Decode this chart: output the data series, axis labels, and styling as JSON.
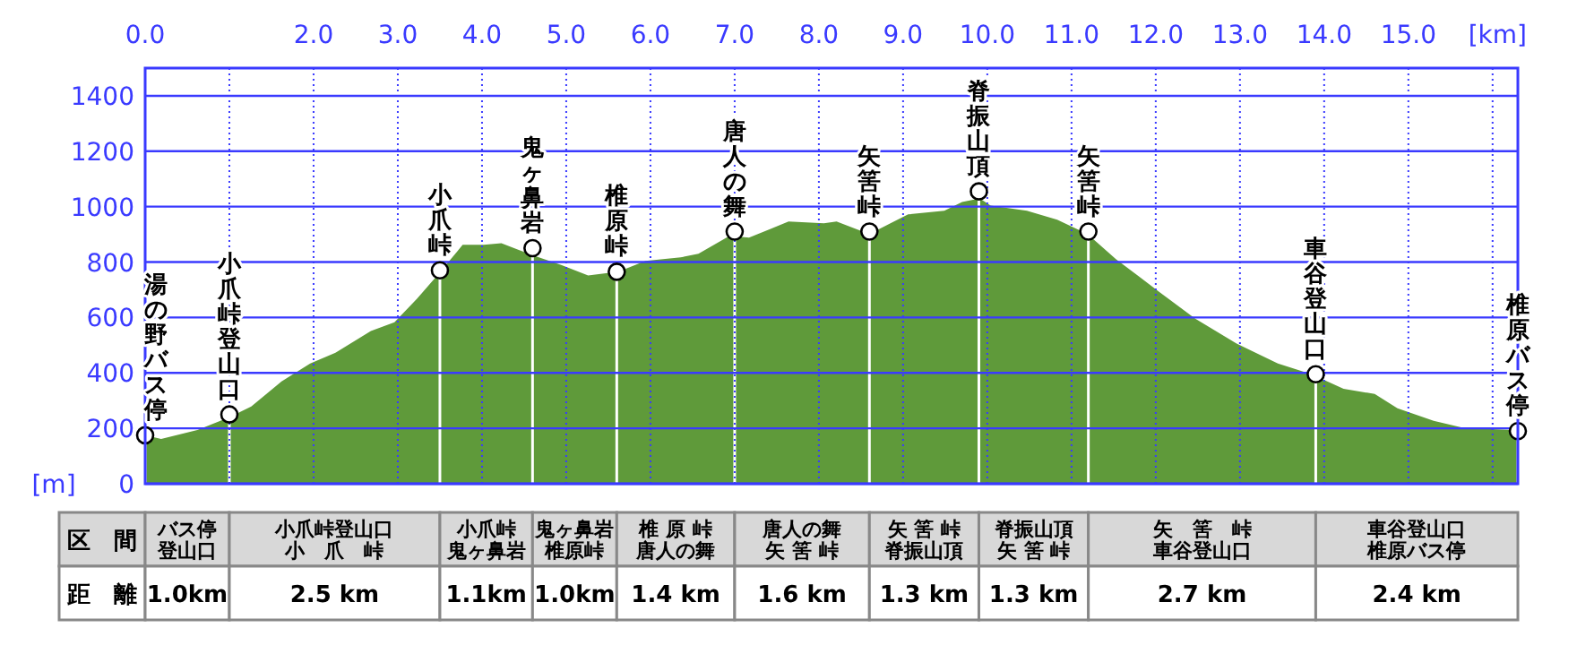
{
  "chart_data": {
    "type": "area",
    "xlabel": "[km]",
    "ylabel": "[m]",
    "xlim": [
      0,
      16.3
    ],
    "xticks": [
      {
        "value": 0,
        "label": "0.0"
      },
      {
        "value": 1,
        "label": null
      },
      {
        "value": 2,
        "label": "2.0"
      },
      {
        "value": 3,
        "label": "3.0"
      },
      {
        "value": 4,
        "label": "4.0"
      },
      {
        "value": 5,
        "label": "5.0"
      },
      {
        "value": 6,
        "label": "6.0"
      },
      {
        "value": 7,
        "label": "7.0"
      },
      {
        "value": 8,
        "label": "8.0"
      },
      {
        "value": 9,
        "label": "9.0"
      },
      {
        "value": 10,
        "label": "10.0"
      },
      {
        "value": 11,
        "label": "11.0"
      },
      {
        "value": 12,
        "label": "12.0"
      },
      {
        "value": 13,
        "label": "13.0"
      },
      {
        "value": 14,
        "label": "14.0"
      },
      {
        "value": 15,
        "label": "15.0"
      },
      {
        "value": 16,
        "label": null
      }
    ],
    "ylim": [
      0,
      1500
    ],
    "yticks": [
      0,
      200,
      400,
      600,
      800,
      1000,
      1200,
      1400
    ],
    "grid": true,
    "series": [
      {
        "color": "#5f9a3a",
        "x": [
          0,
          0.19,
          0.62,
          1.0,
          1.26,
          1.62,
          1.96,
          2.26,
          2.68,
          2.96,
          3.23,
          3.45,
          3.77,
          4.02,
          4.23,
          4.45,
          4.62,
          4.94,
          5.26,
          5.62,
          5.94,
          6.36,
          6.57,
          6.94,
          7.17,
          7.64,
          8.06,
          8.21,
          8.6,
          8.85,
          9.06,
          9.49,
          9.7,
          9.91,
          10.04,
          10.47,
          10.83,
          11.19,
          11.53,
          12.04,
          12.47,
          12.96,
          13.45,
          13.85,
          14.23,
          14.6,
          14.87,
          15.3,
          15.66,
          16.26,
          16.3
        ],
        "values": [
          175,
          162,
          194,
          240,
          279,
          369,
          434,
          473,
          551,
          583,
          668,
          745,
          862,
          862,
          868,
          842,
          823,
          790,
          752,
          765,
          804,
          817,
          830,
          895,
          888,
          946,
          940,
          946,
          901,
          940,
          972,
          985,
          1017,
          1030,
          1004,
          985,
          953,
          901,
          810,
          693,
          596,
          506,
          434,
          395,
          343,
          324,
          272,
          227,
          201,
          194,
          190
        ]
      },
      {
        "type": "scatter",
        "color": "#ffffff",
        "marker": "circle",
        "x": [
          0,
          1.0,
          3.5,
          4.6,
          5.6,
          7.0,
          8.6,
          9.9,
          11.2,
          13.9,
          16.3
        ],
        "values": [
          175,
          250,
          770,
          850,
          765,
          910,
          910,
          1055,
          910,
          395,
          190
        ]
      }
    ],
    "annotations": [
      {
        "text": "湯の野バス停",
        "x": 0,
        "y": 175
      },
      {
        "text": "小爪峠登山口",
        "x": 1.0,
        "y": 250
      },
      {
        "text": "小爪峠",
        "x": 3.5,
        "y": 770
      },
      {
        "text": "鬼ヶ鼻岩",
        "x": 4.6,
        "y": 850
      },
      {
        "text": "椎原峠",
        "x": 5.6,
        "y": 765
      },
      {
        "text": "唐人の舞",
        "x": 7.0,
        "y": 910
      },
      {
        "text": "矢筈峠",
        "x": 8.6,
        "y": 910
      },
      {
        "text": "脊振山頂",
        "x": 9.9,
        "y": 1055
      },
      {
        "text": "矢筈峠",
        "x": 11.2,
        "y": 910
      },
      {
        "text": "車谷登山口",
        "x": 13.9,
        "y": 395
      },
      {
        "text": "椎原バス停",
        "x": 16.3,
        "y": 190
      },
      "区　間",
      "バス停",
      "登山口",
      "小爪峠登山口",
      "小　爪　峠",
      "小爪峠",
      "鬼ヶ鼻岩",
      "鬼ヶ鼻岩",
      "椎原峠",
      "椎 原 峠",
      "唐人の舞",
      "唐人の舞",
      "矢 筈 峠",
      "矢 筈 峠",
      "脊振山頂",
      "脊振山頂",
      "矢 筈 峠",
      "矢　筈　峠",
      "車谷登山口",
      "車谷登山口",
      "椎原バス停",
      "距　離",
      "1.0km",
      "2.5 km",
      "1.1km",
      "1.0km",
      "1.4 km",
      "1.6 km",
      "1.3 km",
      "1.3 km",
      "2.7 km",
      "2.4 km"
    ]
  }
}
